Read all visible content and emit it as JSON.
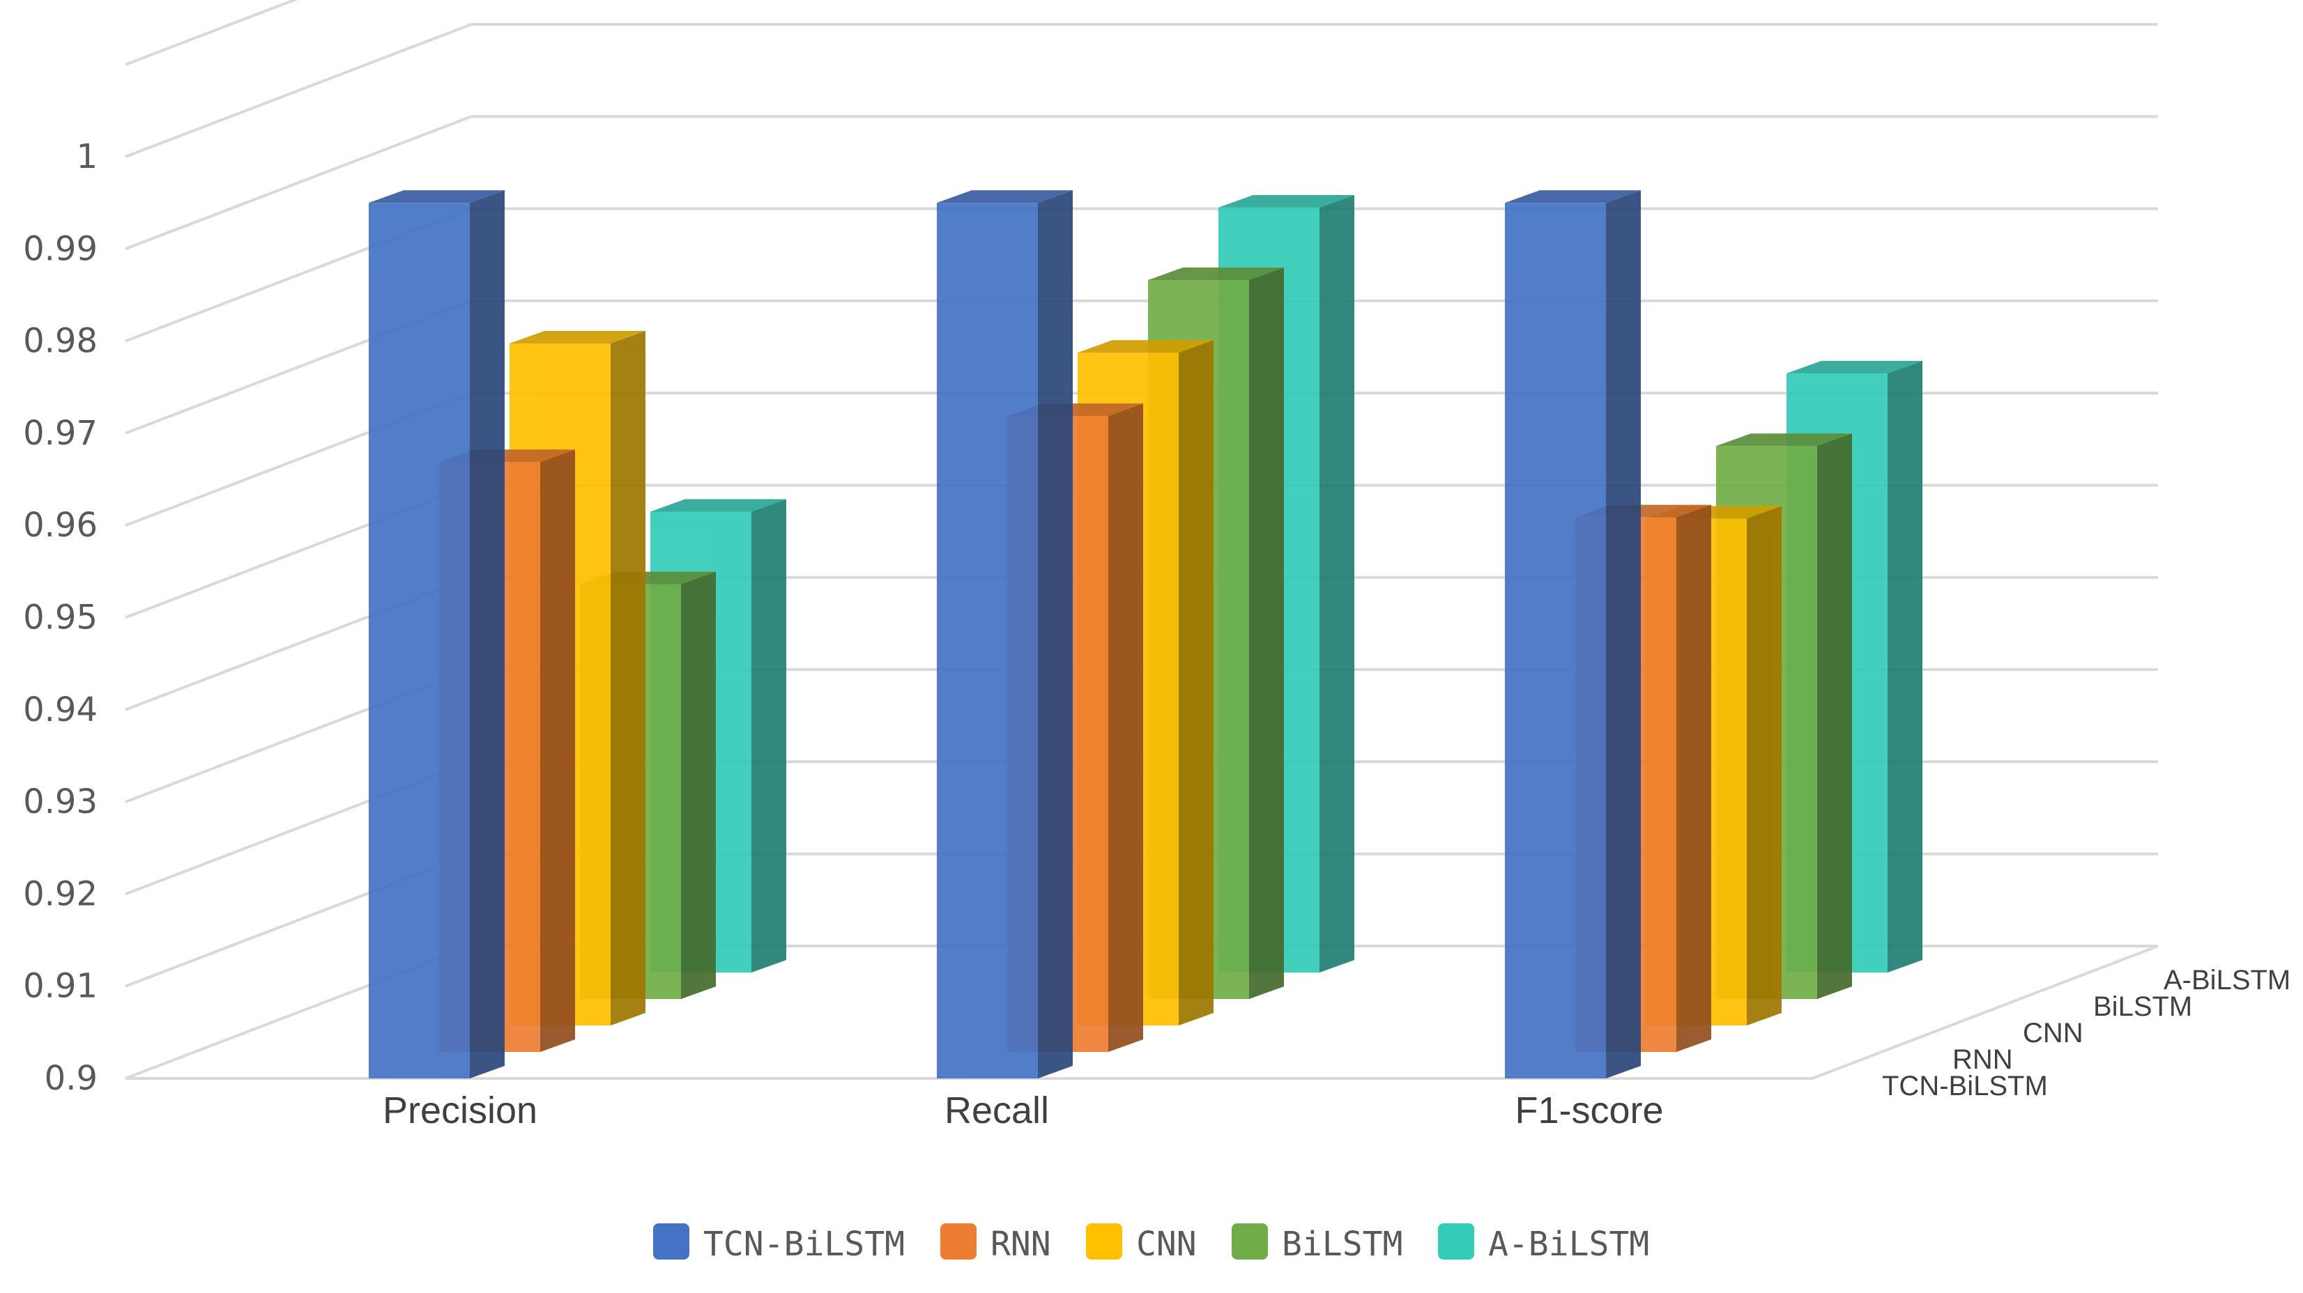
{
  "chart_data": {
    "type": "bar",
    "style": "3d-clustered-depth",
    "categories": [
      "Precision",
      "Recall",
      "F1-score"
    ],
    "series": [
      {
        "name": "TCN-BiLSTM",
        "color": "#4472C4",
        "values": [
          0.995,
          0.995,
          0.995
        ]
      },
      {
        "name": "RNN",
        "color": "#ED7D31",
        "values": [
          0.964,
          0.969,
          0.958
        ]
      },
      {
        "name": "CNN",
        "color": "#FFC000",
        "values": [
          0.974,
          0.973,
          0.955
        ]
      },
      {
        "name": "BiLSTM",
        "color": "#70AD47",
        "values": [
          0.945,
          0.978,
          0.96
        ]
      },
      {
        "name": "A-BiLSTM",
        "color": "#33CCB8",
        "values": [
          0.95,
          0.983,
          0.965
        ]
      }
    ],
    "yticks": [
      "0.9",
      "0.91",
      "0.92",
      "0.93",
      "0.94",
      "0.95",
      "0.96",
      "0.97",
      "0.98",
      "0.99",
      "1"
    ],
    "ylim": [
      0.9,
      1.0
    ],
    "title": "",
    "xlabel": "",
    "ylabel": "",
    "grid": true,
    "legend_position": "bottom"
  }
}
